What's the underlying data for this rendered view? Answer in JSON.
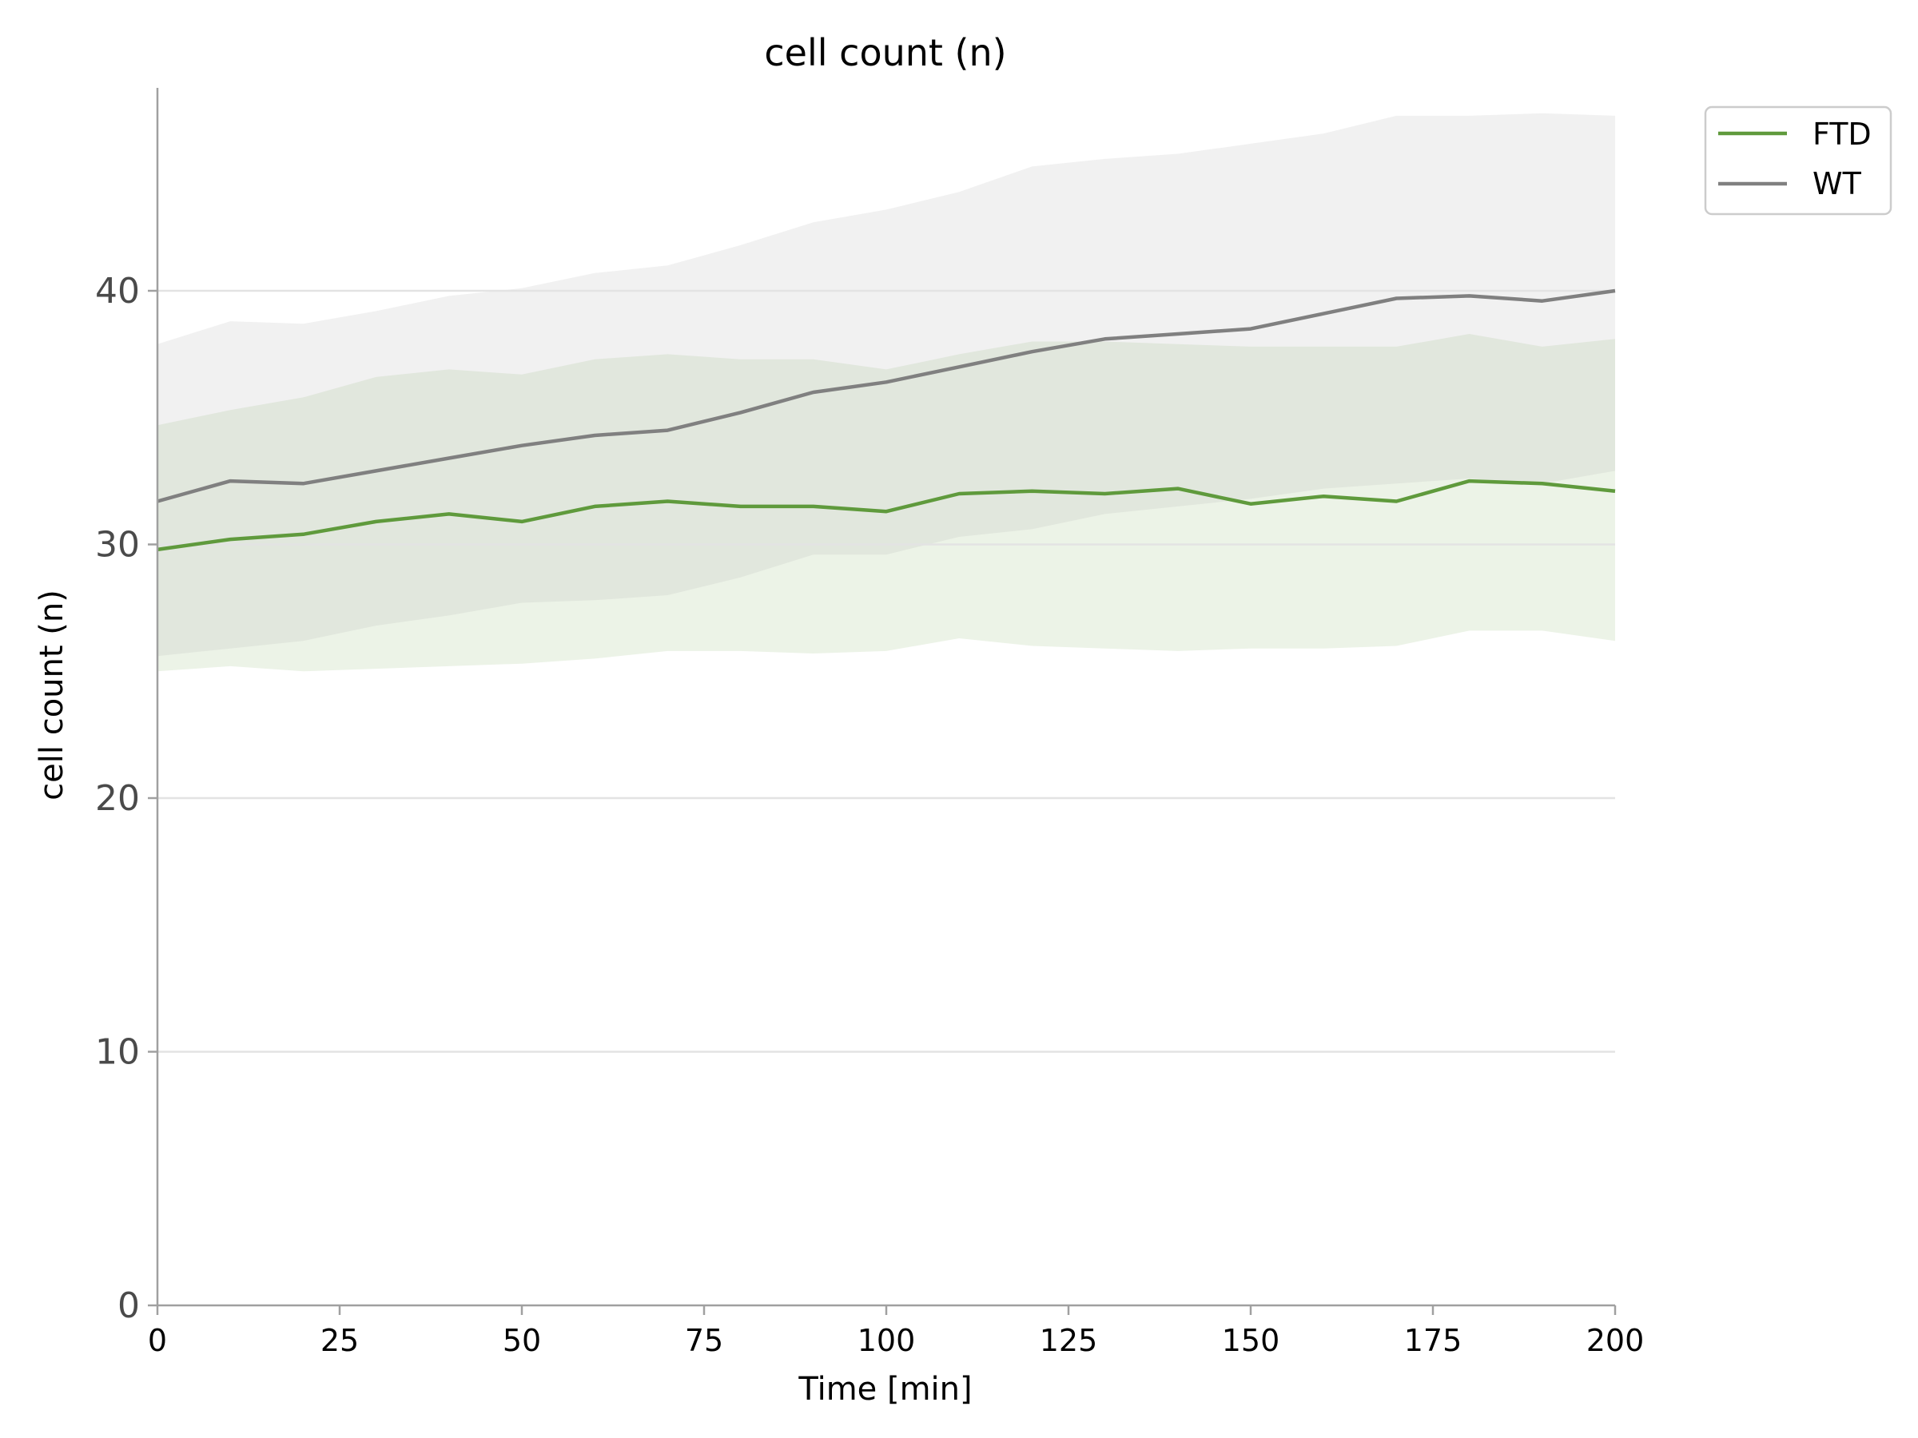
{
  "chart_data": {
    "type": "line",
    "title": "cell count (n)",
    "xlabel": "Time [min]",
    "ylabel": "cell count (n)",
    "xlim": [
      0,
      200
    ],
    "ylim": [
      0,
      48
    ],
    "xticks": [
      "0",
      "25",
      "50",
      "75",
      "100",
      "125",
      "150",
      "175",
      "200"
    ],
    "yticks": [
      "0",
      "10",
      "20",
      "30",
      "40"
    ],
    "grid": "horizontal",
    "legend_position": "top-right, outside plot",
    "x": [
      0,
      10,
      20,
      30,
      40,
      50,
      60,
      70,
      80,
      90,
      100,
      110,
      120,
      130,
      140,
      150,
      160,
      170,
      180,
      190,
      200
    ],
    "series": [
      {
        "name": "FTD",
        "color": "#5f9a3c",
        "values": [
          29.8,
          30.2,
          30.4,
          30.9,
          31.2,
          30.9,
          31.5,
          31.7,
          31.5,
          31.5,
          31.3,
          32.0,
          32.1,
          32.0,
          32.2,
          31.6,
          31.9,
          31.7,
          32.5,
          32.4,
          32.1
        ],
        "band_lower": [
          25.0,
          25.2,
          25.0,
          25.1,
          25.2,
          25.3,
          25.5,
          25.8,
          25.8,
          25.7,
          25.8,
          26.3,
          26.0,
          25.9,
          25.8,
          25.9,
          25.9,
          26.0,
          26.6,
          26.6,
          26.2
        ],
        "band_upper": [
          34.7,
          35.3,
          35.8,
          36.6,
          36.9,
          36.7,
          37.3,
          37.5,
          37.3,
          37.3,
          36.9,
          37.5,
          38.0,
          38.0,
          37.9,
          37.8,
          37.8,
          37.8,
          38.3,
          37.8,
          38.1
        ]
      },
      {
        "name": "WT",
        "color": "#808080",
        "values": [
          31.7,
          32.5,
          32.4,
          32.9,
          33.4,
          33.9,
          34.3,
          34.5,
          35.2,
          36.0,
          36.4,
          37.0,
          37.6,
          38.1,
          38.3,
          38.5,
          39.1,
          39.7,
          39.8,
          39.6,
          40.0
        ],
        "band_lower": [
          25.6,
          25.9,
          26.2,
          26.8,
          27.2,
          27.7,
          27.8,
          28.0,
          28.7,
          29.6,
          29.6,
          30.3,
          30.6,
          31.2,
          31.5,
          31.8,
          32.2,
          32.4,
          32.6,
          32.4,
          32.9
        ],
        "band_upper": [
          37.9,
          38.8,
          38.7,
          39.2,
          39.8,
          40.1,
          40.7,
          41.0,
          41.8,
          42.7,
          43.2,
          43.9,
          44.9,
          45.2,
          45.4,
          45.8,
          46.2,
          46.9,
          46.9,
          47.0,
          46.9
        ]
      }
    ]
  }
}
